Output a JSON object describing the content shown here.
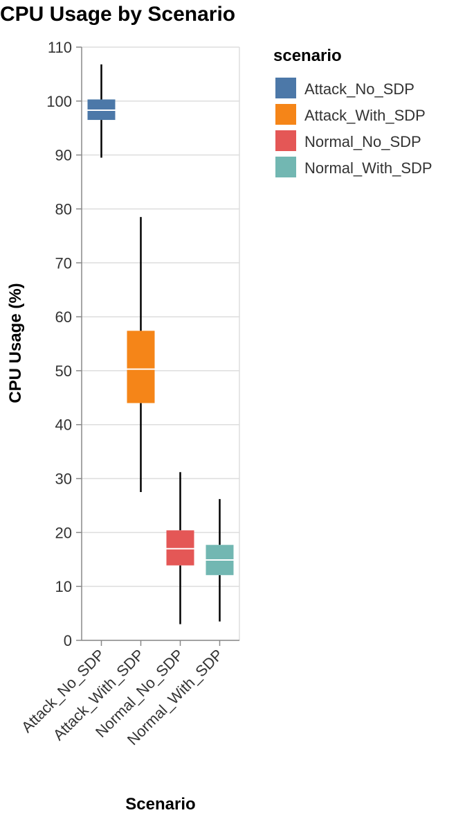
{
  "chart_data": {
    "type": "box",
    "title": "CPU Usage by Scenario",
    "xlabel": "Scenario",
    "ylabel": "CPU Usage (%)",
    "ylim": [
      0,
      110
    ],
    "yticks": [
      0,
      10,
      20,
      30,
      40,
      50,
      60,
      70,
      80,
      90,
      100,
      110
    ],
    "grid": true,
    "legend": {
      "title": "scenario",
      "position": "top-right",
      "entries": [
        "Attack_No_SDP",
        "Attack_With_SDP",
        "Normal_No_SDP",
        "Normal_With_SDP"
      ]
    },
    "categories": [
      "Attack_No_SDP",
      "Attack_With_SDP",
      "Normal_No_SDP",
      "Normal_With_SDP"
    ],
    "series": [
      {
        "name": "Attack_No_SDP",
        "color": "#4c78a8",
        "min": 89.5,
        "q1": 96.5,
        "median": 98.3,
        "q3": 100.3,
        "max": 106.8
      },
      {
        "name": "Attack_With_SDP",
        "color": "#f58518",
        "min": 27.5,
        "q1": 44.0,
        "median": 50.3,
        "q3": 57.4,
        "max": 78.5
      },
      {
        "name": "Normal_No_SDP",
        "color": "#e45756",
        "min": 3.0,
        "q1": 13.9,
        "median": 17.0,
        "q3": 20.4,
        "max": 31.2
      },
      {
        "name": "Normal_With_SDP",
        "color": "#72b7b2",
        "min": 3.5,
        "q1": 12.1,
        "median": 14.9,
        "q3": 17.7,
        "max": 26.2
      }
    ]
  }
}
